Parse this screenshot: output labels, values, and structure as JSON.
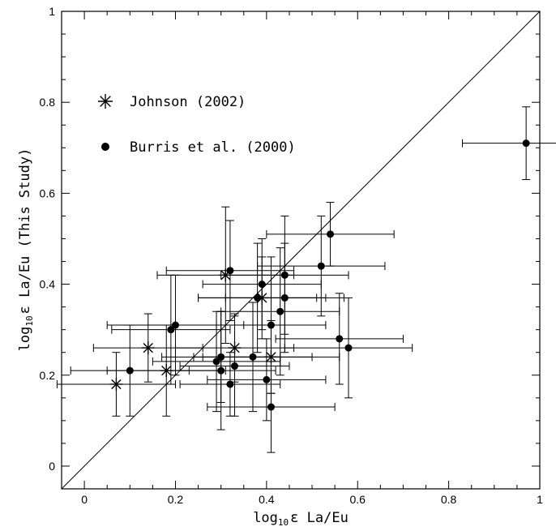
{
  "chart_data": {
    "type": "scatter",
    "xlabel": {
      "prefix": "log",
      "sub": "10",
      "suffix": "ε La/Eu"
    },
    "ylabel": {
      "prefix": "log",
      "sub": "10",
      "suffix": "ε La/Eu (This Study)"
    },
    "xlim": [
      -0.05,
      1.0
    ],
    "ylim": [
      -0.05,
      1.0
    ],
    "x_ticks": [
      0,
      0.2,
      0.4,
      0.6,
      0.8,
      1
    ],
    "x_tick_labels": [
      "0",
      "0.2",
      "0.4",
      "0.6",
      "0.8",
      "1"
    ],
    "y_ticks": [
      0,
      0.2,
      0.4,
      0.6,
      0.8,
      1
    ],
    "y_tick_labels": [
      "0",
      "0.2",
      "0.4",
      "0.6",
      "0.8",
      "1"
    ],
    "grid": false,
    "reference_line": {
      "type": "y=x",
      "from": [
        -0.05,
        -0.05
      ],
      "to": [
        1.0,
        1.0
      ]
    },
    "legend": {
      "placement": "top-left",
      "items": [
        {
          "label": "Johnson (2002)",
          "marker": "asterisk"
        },
        {
          "label": "Burris et al. (2000)",
          "marker": "filled-circle"
        }
      ]
    },
    "series": [
      {
        "name": "Johnson (2002)",
        "marker": "asterisk",
        "points": [
          {
            "x": 0.07,
            "y": 0.18,
            "xerr": 0.13,
            "yerr": 0.07
          },
          {
            "x": 0.14,
            "y": 0.26,
            "xerr": 0.12,
            "yerr": 0.075
          },
          {
            "x": 0.18,
            "y": 0.21,
            "xerr": 0.13,
            "yerr": 0.1
          },
          {
            "x": 0.31,
            "y": 0.42,
            "xerr": 0.15,
            "yerr": 0.15
          },
          {
            "x": 0.33,
            "y": 0.26,
            "xerr": 0.13,
            "yerr": 0.075
          },
          {
            "x": 0.39,
            "y": 0.37,
            "xerr": 0.14,
            "yerr": 0.09
          },
          {
            "x": 0.41,
            "y": 0.24,
            "xerr": 0.15,
            "yerr": 0.08
          }
        ]
      },
      {
        "name": "Burris et al. (2000)",
        "marker": "filled-circle",
        "points": [
          {
            "x": 0.1,
            "y": 0.21,
            "xerr": 0.13,
            "yerr": 0.1
          },
          {
            "x": 0.19,
            "y": 0.3,
            "xerr": 0.13,
            "yerr": 0.12
          },
          {
            "x": 0.2,
            "y": 0.31,
            "xerr": 0.15,
            "yerr": 0.11
          },
          {
            "x": 0.29,
            "y": 0.23,
            "xerr": 0.14,
            "yerr": 0.11
          },
          {
            "x": 0.3,
            "y": 0.21,
            "xerr": 0.12,
            "yerr": 0.13
          },
          {
            "x": 0.3,
            "y": 0.24,
            "xerr": 0.13,
            "yerr": 0.1
          },
          {
            "x": 0.32,
            "y": 0.18,
            "xerr": 0.11,
            "yerr": 0.07
          },
          {
            "x": 0.32,
            "y": 0.43,
            "xerr": 0.14,
            "yerr": 0.11
          },
          {
            "x": 0.33,
            "y": 0.22,
            "xerr": 0.12,
            "yerr": 0.11
          },
          {
            "x": 0.37,
            "y": 0.24,
            "xerr": 0.13,
            "yerr": 0.12
          },
          {
            "x": 0.38,
            "y": 0.37,
            "xerr": 0.13,
            "yerr": 0.12
          },
          {
            "x": 0.39,
            "y": 0.4,
            "xerr": 0.13,
            "yerr": 0.1
          },
          {
            "x": 0.4,
            "y": 0.19,
            "xerr": 0.13,
            "yerr": 0.09
          },
          {
            "x": 0.41,
            "y": 0.13,
            "xerr": 0.14,
            "yerr": 0.1
          },
          {
            "x": 0.41,
            "y": 0.31,
            "xerr": 0.12,
            "yerr": 0.15
          },
          {
            "x": 0.43,
            "y": 0.34,
            "xerr": 0.13,
            "yerr": 0.14
          },
          {
            "x": 0.44,
            "y": 0.37,
            "xerr": 0.13,
            "yerr": 0.12
          },
          {
            "x": 0.44,
            "y": 0.42,
            "xerr": 0.14,
            "yerr": 0.13
          },
          {
            "x": 0.52,
            "y": 0.44,
            "xerr": 0.14,
            "yerr": 0.11
          },
          {
            "x": 0.54,
            "y": 0.51,
            "xerr": 0.14,
            "yerr": 0.07
          },
          {
            "x": 0.56,
            "y": 0.28,
            "xerr": 0.14,
            "yerr": 0.1
          },
          {
            "x": 0.58,
            "y": 0.26,
            "xerr": 0.14,
            "yerr": 0.11
          },
          {
            "x": 0.97,
            "y": 0.71,
            "xerr": 0.14,
            "yerr": 0.08
          }
        ]
      }
    ]
  }
}
